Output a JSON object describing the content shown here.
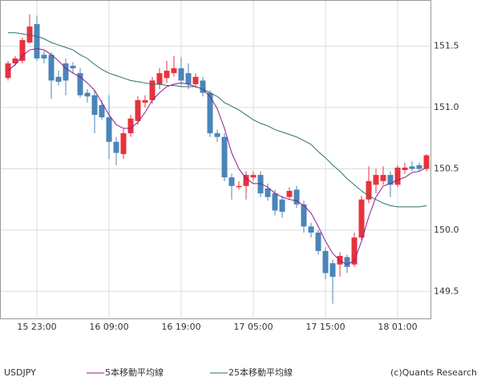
{
  "chart_data": {
    "type": "candlestick",
    "symbol": "USDJPY",
    "credit": "(c)Quants Research",
    "categories": [
      null,
      null,
      null,
      null,
      "15 23:00",
      null,
      null,
      null,
      null,
      null,
      null,
      null,
      null,
      null,
      "16 09:00",
      null,
      null,
      null,
      null,
      null,
      null,
      null,
      null,
      null,
      "16 19:00",
      null,
      null,
      null,
      null,
      null,
      null,
      null,
      null,
      null,
      "17 05:00",
      null,
      null,
      null,
      null,
      null,
      null,
      null,
      null,
      null,
      "17 15:00",
      null,
      null,
      null,
      null,
      null,
      null,
      null,
      null,
      null,
      "18 01:00",
      null,
      null,
      null,
      null
    ],
    "open": [
      151.24,
      151.36,
      151.38,
      151.53,
      151.68,
      151.43,
      151.43,
      151.25,
      151.36,
      151.34,
      151.28,
      151.12,
      151.1,
      151.02,
      150.92,
      150.72,
      150.62,
      150.79,
      150.89,
      151.04,
      151.06,
      151.19,
      151.24,
      151.28,
      151.32,
      151.28,
      151.19,
      151.22,
      151.12,
      150.79,
      150.76,
      150.43,
      150.35,
      150.36,
      150.43,
      150.45,
      150.34,
      150.3,
      150.25,
      150.27,
      150.33,
      150.21,
      150.03,
      149.98,
      149.83,
      149.73,
      149.72,
      149.78,
      149.72,
      149.94,
      150.25,
      150.37,
      150.4,
      150.45,
      150.37,
      150.49,
      150.52,
      150.53,
      150.5
    ],
    "high": [
      151.38,
      151.42,
      151.57,
      151.76,
      151.75,
      151.46,
      151.45,
      151.3,
      151.4,
      151.37,
      151.32,
      151.15,
      151.14,
      151.06,
      151.1,
      150.76,
      150.83,
      150.94,
      151.09,
      151.1,
      151.25,
      151.32,
      151.38,
      151.42,
      151.41,
      151.36,
      151.28,
      151.25,
      151.14,
      150.82,
      150.79,
      150.46,
      150.4,
      150.48,
      150.48,
      150.48,
      150.38,
      150.33,
      150.28,
      150.35,
      150.36,
      150.24,
      150.06,
      150.0,
      149.86,
      149.76,
      149.82,
      149.8,
      149.98,
      150.28,
      150.52,
      150.5,
      150.52,
      150.48,
      150.53,
      150.55,
      150.56,
      150.55,
      150.62
    ],
    "low": [
      151.22,
      151.34,
      151.36,
      151.52,
      151.38,
      151.36,
      151.07,
      151.18,
      151.1,
      151.28,
      151.08,
      151.04,
      150.79,
      150.9,
      150.58,
      150.53,
      150.58,
      150.76,
      150.86,
      151.0,
      151.03,
      151.15,
      151.2,
      151.25,
      151.18,
      151.15,
      151.16,
      151.09,
      150.76,
      150.72,
      150.4,
      150.25,
      150.33,
      150.25,
      150.4,
      150.27,
      150.24,
      150.12,
      150.1,
      150.25,
      150.18,
      149.98,
      149.94,
      149.8,
      149.6,
      149.4,
      149.62,
      149.65,
      149.7,
      149.92,
      150.22,
      150.3,
      150.37,
      150.27,
      150.35,
      150.46,
      150.48,
      150.48,
      150.48
    ],
    "close": [
      151.36,
      151.4,
      151.55,
      151.66,
      151.4,
      151.4,
      151.22,
      151.21,
      151.22,
      151.32,
      151.1,
      151.09,
      150.94,
      150.92,
      150.72,
      150.63,
      150.79,
      150.91,
      151.06,
      151.06,
      151.22,
      151.28,
      151.3,
      151.32,
      151.22,
      151.19,
      151.25,
      151.12,
      150.79,
      150.76,
      150.43,
      150.36,
      150.36,
      150.45,
      150.45,
      150.3,
      150.27,
      150.16,
      150.15,
      150.32,
      150.21,
      150.03,
      149.98,
      149.83,
      149.65,
      149.62,
      149.79,
      149.7,
      149.94,
      150.25,
      150.4,
      150.45,
      150.45,
      150.37,
      150.51,
      150.51,
      150.5,
      150.5,
      150.61
    ],
    "up_color": "#e8323c",
    "down_color": "#4a85b9",
    "series": [
      {
        "name": "5本移動平均線",
        "color": "#8e1a8e",
        "values": [
          151.3,
          151.35,
          151.42,
          151.47,
          151.48,
          151.47,
          151.43,
          151.38,
          151.32,
          151.28,
          151.25,
          151.2,
          151.14,
          151.04,
          150.94,
          150.86,
          150.83,
          150.83,
          150.88,
          150.96,
          151.06,
          151.12,
          151.17,
          151.19,
          151.2,
          151.19,
          151.17,
          151.15,
          151.09,
          150.99,
          150.83,
          150.63,
          150.5,
          150.42,
          150.38,
          150.38,
          150.35,
          150.3,
          150.27,
          150.25,
          150.24,
          150.2,
          150.14,
          150.03,
          149.91,
          149.81,
          149.75,
          149.72,
          149.75,
          149.91,
          150.11,
          150.27,
          150.36,
          150.38,
          150.41,
          150.43,
          150.47,
          150.48,
          150.51
        ]
      },
      {
        "name": "25本移動平均線",
        "color": "#2e6f6f",
        "values": [
          151.61,
          151.61,
          151.6,
          151.59,
          151.58,
          151.56,
          151.53,
          151.51,
          151.49,
          151.47,
          151.43,
          151.4,
          151.35,
          151.31,
          151.28,
          151.26,
          151.24,
          151.22,
          151.21,
          151.2,
          151.19,
          151.19,
          151.18,
          151.18,
          151.17,
          151.17,
          151.17,
          151.15,
          151.12,
          151.09,
          151.04,
          151.01,
          150.98,
          150.94,
          150.9,
          150.87,
          150.85,
          150.82,
          150.8,
          150.78,
          150.76,
          150.73,
          150.7,
          150.64,
          150.59,
          150.53,
          150.48,
          150.42,
          150.37,
          150.32,
          150.28,
          150.25,
          150.22,
          150.2,
          150.19,
          150.19,
          150.19,
          150.19,
          150.2
        ]
      }
    ],
    "ylim": [
      149.28,
      151.87
    ],
    "yticks": [
      149.5,
      {
        "value": 150,
        "label": "150.0"
      },
      150.5,
      {
        "value": 151,
        "label": "151.0"
      },
      151.5
    ],
    "grid": true
  }
}
